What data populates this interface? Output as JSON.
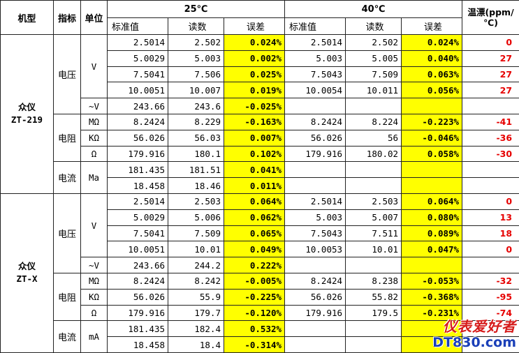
{
  "headers": {
    "model": "机型",
    "indicator": "指标",
    "unit": "单位",
    "t25": "25℃",
    "t40": "40℃",
    "drift": "温漂(ppm/℃)",
    "std": "标准值",
    "reading": "读数",
    "error": "误差"
  },
  "blocks": [
    {
      "model_name": "众仪",
      "model_code": "ZT-219",
      "groups": [
        {
          "indicator": "电压",
          "units": [
            {
              "unit": "V",
              "rows": [
                {
                  "std25": "2.5014",
                  "read25": "2.502",
                  "err25": "0.024%",
                  "std40": "2.5014",
                  "read40": "2.502",
                  "err40": "0.024%",
                  "drift": "0"
                },
                {
                  "std25": "5.0029",
                  "read25": "5.003",
                  "err25": "0.002%",
                  "std40": "5.003",
                  "read40": "5.005",
                  "err40": "0.040%",
                  "drift": "27"
                },
                {
                  "std25": "7.5041",
                  "read25": "7.506",
                  "err25": "0.025%",
                  "std40": "7.5043",
                  "read40": "7.509",
                  "err40": "0.063%",
                  "drift": "27"
                },
                {
                  "std25": "10.0051",
                  "read25": "10.007",
                  "err25": "0.019%",
                  "std40": "10.0054",
                  "read40": "10.011",
                  "err40": "0.056%",
                  "drift": "27"
                }
              ]
            },
            {
              "unit": "~V",
              "rows": [
                {
                  "std25": "243.66",
                  "read25": "243.6",
                  "err25": "-0.025%",
                  "std40": "",
                  "read40": "",
                  "err40": "",
                  "drift": ""
                }
              ]
            }
          ]
        },
        {
          "indicator": "电阻",
          "units": [
            {
              "unit": "MΩ",
              "rows": [
                {
                  "std25": "8.2424",
                  "read25": "8.229",
                  "err25": "-0.163%",
                  "std40": "8.2424",
                  "read40": "8.224",
                  "err40": "-0.223%",
                  "drift": "-41"
                }
              ]
            },
            {
              "unit": "KΩ",
              "rows": [
                {
                  "std25": "56.026",
                  "read25": "56.03",
                  "err25": "0.007%",
                  "std40": "56.026",
                  "read40": "56",
                  "err40": "-0.046%",
                  "drift": "-36"
                }
              ]
            },
            {
              "unit": "Ω",
              "rows": [
                {
                  "std25": "179.916",
                  "read25": "180.1",
                  "err25": "0.102%",
                  "std40": "179.916",
                  "read40": "180.02",
                  "err40": "0.058%",
                  "drift": "-30"
                }
              ]
            }
          ]
        },
        {
          "indicator": "电流",
          "units": [
            {
              "unit": "Ma",
              "rows": [
                {
                  "std25": "181.435",
                  "read25": "181.51",
                  "err25": "0.041%",
                  "std40": "",
                  "read40": "",
                  "err40": "",
                  "drift": ""
                },
                {
                  "std25": "18.458",
                  "read25": "18.46",
                  "err25": "0.011%",
                  "std40": "",
                  "read40": "",
                  "err40": "",
                  "drift": ""
                }
              ]
            }
          ]
        }
      ]
    },
    {
      "model_name": "众仪",
      "model_code": "ZT-X",
      "groups": [
        {
          "indicator": "电压",
          "units": [
            {
              "unit": "V",
              "rows": [
                {
                  "std25": "2.5014",
                  "read25": "2.503",
                  "err25": "0.064%",
                  "std40": "2.5014",
                  "read40": "2.503",
                  "err40": "0.064%",
                  "drift": "0"
                },
                {
                  "std25": "5.0029",
                  "read25": "5.006",
                  "err25": "0.062%",
                  "std40": "5.003",
                  "read40": "5.007",
                  "err40": "0.080%",
                  "drift": "13"
                },
                {
                  "std25": "7.5041",
                  "read25": "7.509",
                  "err25": "0.065%",
                  "std40": "7.5043",
                  "read40": "7.511",
                  "err40": "0.089%",
                  "drift": "18"
                },
                {
                  "std25": "10.0051",
                  "read25": "10.01",
                  "err25": "0.049%",
                  "std40": "10.0053",
                  "read40": "10.01",
                  "err40": "0.047%",
                  "drift": "0"
                }
              ]
            },
            {
              "unit": "~V",
              "rows": [
                {
                  "std25": "243.66",
                  "read25": "244.2",
                  "err25": "0.222%",
                  "std40": "",
                  "read40": "",
                  "err40": "",
                  "drift": ""
                }
              ]
            }
          ]
        },
        {
          "indicator": "电阻",
          "units": [
            {
              "unit": "MΩ",
              "rows": [
                {
                  "std25": "8.2424",
                  "read25": "8.242",
                  "err25": "-0.005%",
                  "std40": "8.2424",
                  "read40": "8.238",
                  "err40": "-0.053%",
                  "drift": "-32"
                }
              ]
            },
            {
              "unit": "KΩ",
              "rows": [
                {
                  "std25": "56.026",
                  "read25": "55.9",
                  "err25": "-0.225%",
                  "std40": "56.026",
                  "read40": "55.82",
                  "err40": "-0.368%",
                  "drift": "-95"
                }
              ]
            },
            {
              "unit": "Ω",
              "rows": [
                {
                  "std25": "179.916",
                  "read25": "179.7",
                  "err25": "-0.120%",
                  "std40": "179.916",
                  "read40": "179.5",
                  "err40": "-0.231%",
                  "drift": "-74"
                }
              ]
            }
          ]
        },
        {
          "indicator": "电流",
          "units": [
            {
              "unit": "mA",
              "rows": [
                {
                  "std25": "181.435",
                  "read25": "182.4",
                  "err25": "0.532%",
                  "std40": "",
                  "read40": "",
                  "err40": "",
                  "drift": ""
                },
                {
                  "std25": "18.458",
                  "read25": "18.4",
                  "err25": "-0.314%",
                  "std40": "",
                  "read40": "",
                  "err40": "",
                  "drift": ""
                }
              ]
            }
          ]
        }
      ]
    }
  ],
  "watermark": {
    "line1": "仪表爱好者",
    "line2": "DT830.com"
  },
  "colors": {
    "highlight": "#ffff00",
    "drift_text": "#e60000",
    "watermark_red": "#d61b1b",
    "watermark_blue": "#1a3fb8"
  }
}
